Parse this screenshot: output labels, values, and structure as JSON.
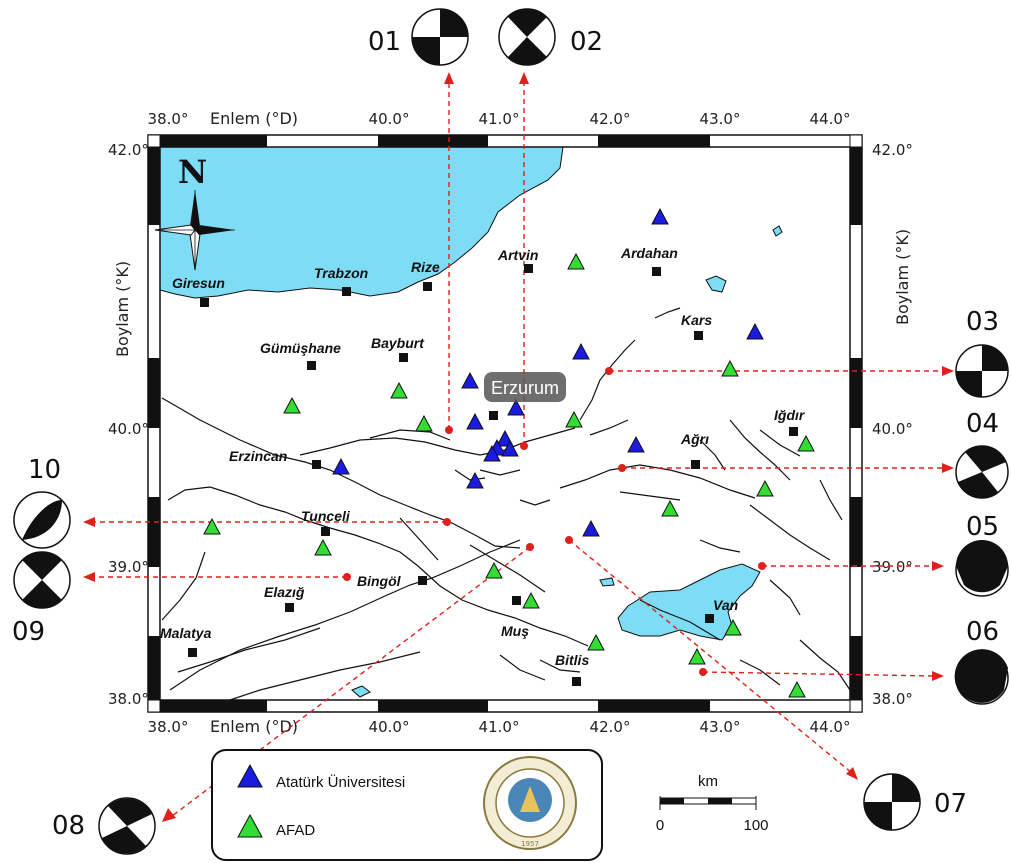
{
  "axes": {
    "top_label": "Enlem (°D)",
    "bottom_label": "Enlem (°D)",
    "left_label": "Boylam (°K)",
    "right_label": "Boylam (°K)",
    "x_ticks": [
      "38.0°",
      "39.0°",
      "40.0°",
      "41.0°",
      "42.0°",
      "43.0°",
      "44.0°"
    ],
    "y_ticks": [
      "42.0°",
      "40.0°",
      "39.0°",
      "38.0°"
    ]
  },
  "north_label": "N",
  "highlight_city": "Erzurum",
  "cities": [
    {
      "id": "giresun",
      "name": "Giresun"
    },
    {
      "id": "trabzon",
      "name": "Trabzon"
    },
    {
      "id": "rize",
      "name": "Rize"
    },
    {
      "id": "artvin",
      "name": "Artvin"
    },
    {
      "id": "ardahan",
      "name": "Ardahan"
    },
    {
      "id": "kars",
      "name": "Kars"
    },
    {
      "id": "gumushane",
      "name": "Gümüşhane"
    },
    {
      "id": "bayburt",
      "name": "Bayburt"
    },
    {
      "id": "igdir",
      "name": "Iğdır"
    },
    {
      "id": "agri",
      "name": "Ağrı"
    },
    {
      "id": "erzincan",
      "name": "Erzincan"
    },
    {
      "id": "tunceli",
      "name": "Tunceli"
    },
    {
      "id": "bingol",
      "name": "Bingöl"
    },
    {
      "id": "elazig",
      "name": "Elazığ"
    },
    {
      "id": "malatya",
      "name": "Malatya"
    },
    {
      "id": "mus",
      "name": "Muş"
    },
    {
      "id": "van",
      "name": "Van"
    },
    {
      "id": "bitlis",
      "name": "Bitlis"
    }
  ],
  "events": [
    "01",
    "02",
    "03",
    "04",
    "05",
    "06",
    "07",
    "08",
    "09",
    "10"
  ],
  "legend": {
    "items": [
      {
        "label": "Atatürk Üniversitesi",
        "color": "#1a1ae0"
      },
      {
        "label": "AFAD",
        "color": "#33dd33"
      }
    ],
    "seal_text": "ATATÜRK ÜNİVERSİTESİ",
    "seal_year": "1957"
  },
  "scale": {
    "unit": "km",
    "start": "0",
    "end": "100"
  },
  "colors": {
    "water": "#7fdcf5",
    "arrow": "#e0201b",
    "station_atauni": "#1a1ae0",
    "station_afad": "#33dd33"
  }
}
